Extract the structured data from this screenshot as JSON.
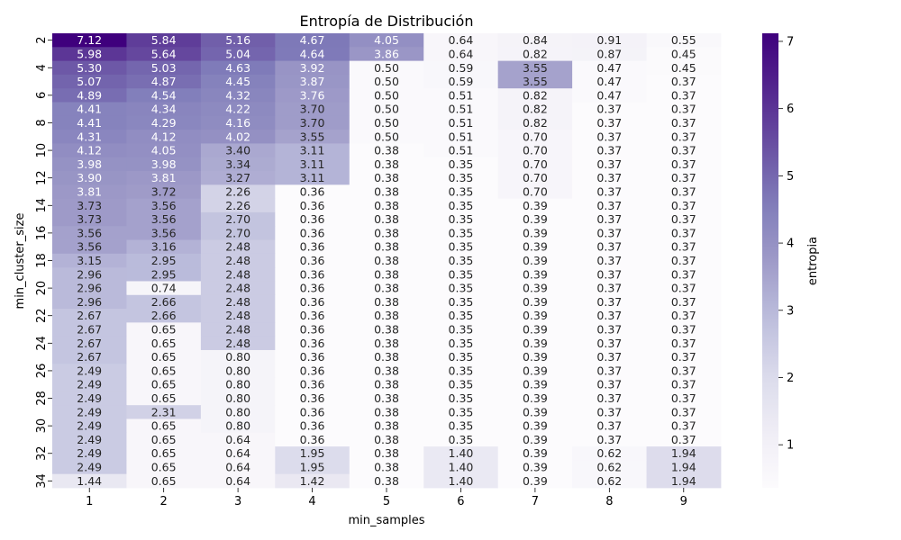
{
  "chart_data": {
    "type": "heatmap",
    "title": "Entropía de Distribución",
    "xlabel": "min_samples",
    "ylabel": "min_cluster_size",
    "colorbar_label": "entropia",
    "colormap": "Purples",
    "x": [
      1,
      2,
      3,
      4,
      5,
      6,
      7,
      8,
      9
    ],
    "y": [
      2,
      3,
      4,
      5,
      6,
      7,
      8,
      9,
      10,
      11,
      12,
      13,
      14,
      15,
      16,
      17,
      18,
      19,
      20,
      21,
      22,
      23,
      24,
      25,
      26,
      27,
      28,
      29,
      30,
      31,
      32,
      33,
      34
    ],
    "y_tick_labels": [
      "2",
      "4",
      "6",
      "8",
      "10",
      "12",
      "14",
      "16",
      "18",
      "20",
      "22",
      "24",
      "26",
      "28",
      "30",
      "32",
      "34"
    ],
    "vmin": 0.36,
    "vmax": 7.12,
    "colorbar_ticks": [
      1,
      2,
      3,
      4,
      5,
      6,
      7
    ],
    "values": [
      [
        7.12,
        5.84,
        5.16,
        4.67,
        4.05,
        0.64,
        0.84,
        0.91,
        0.55
      ],
      [
        5.98,
        5.64,
        5.04,
        4.64,
        3.86,
        0.64,
        0.82,
        0.87,
        0.45
      ],
      [
        5.3,
        5.03,
        4.63,
        3.92,
        0.5,
        0.59,
        3.55,
        0.47,
        0.45
      ],
      [
        5.07,
        4.87,
        4.45,
        3.87,
        0.5,
        0.59,
        3.55,
        0.47,
        0.37
      ],
      [
        4.89,
        4.54,
        4.32,
        3.76,
        0.5,
        0.51,
        0.82,
        0.47,
        0.37
      ],
      [
        4.41,
        4.34,
        4.22,
        3.7,
        0.5,
        0.51,
        0.82,
        0.37,
        0.37
      ],
      [
        4.41,
        4.29,
        4.16,
        3.7,
        0.5,
        0.51,
        0.82,
        0.37,
        0.37
      ],
      [
        4.31,
        4.12,
        4.02,
        3.55,
        0.5,
        0.51,
        0.7,
        0.37,
        0.37
      ],
      [
        4.12,
        4.05,
        3.4,
        3.11,
        0.38,
        0.51,
        0.7,
        0.37,
        0.37
      ],
      [
        3.98,
        3.98,
        3.34,
        3.11,
        0.38,
        0.35,
        0.7,
        0.37,
        0.37
      ],
      [
        3.9,
        3.81,
        3.27,
        3.11,
        0.38,
        0.35,
        0.7,
        0.37,
        0.37
      ],
      [
        3.81,
        3.72,
        2.26,
        0.36,
        0.38,
        0.35,
        0.7,
        0.37,
        0.37
      ],
      [
        3.73,
        3.56,
        2.26,
        0.36,
        0.38,
        0.35,
        0.39,
        0.37,
        0.37
      ],
      [
        3.73,
        3.56,
        2.7,
        0.36,
        0.38,
        0.35,
        0.39,
        0.37,
        0.37
      ],
      [
        3.56,
        3.56,
        2.7,
        0.36,
        0.38,
        0.35,
        0.39,
        0.37,
        0.37
      ],
      [
        3.56,
        3.16,
        2.48,
        0.36,
        0.38,
        0.35,
        0.39,
        0.37,
        0.37
      ],
      [
        3.15,
        2.95,
        2.48,
        0.36,
        0.38,
        0.35,
        0.39,
        0.37,
        0.37
      ],
      [
        2.96,
        2.95,
        2.48,
        0.36,
        0.38,
        0.35,
        0.39,
        0.37,
        0.37
      ],
      [
        2.96,
        0.74,
        2.48,
        0.36,
        0.38,
        0.35,
        0.39,
        0.37,
        0.37
      ],
      [
        2.96,
        2.66,
        2.48,
        0.36,
        0.38,
        0.35,
        0.39,
        0.37,
        0.37
      ],
      [
        2.67,
        2.66,
        2.48,
        0.36,
        0.38,
        0.35,
        0.39,
        0.37,
        0.37
      ],
      [
        2.67,
        0.65,
        2.48,
        0.36,
        0.38,
        0.35,
        0.39,
        0.37,
        0.37
      ],
      [
        2.67,
        0.65,
        2.48,
        0.36,
        0.38,
        0.35,
        0.39,
        0.37,
        0.37
      ],
      [
        2.67,
        0.65,
        0.8,
        0.36,
        0.38,
        0.35,
        0.39,
        0.37,
        0.37
      ],
      [
        2.49,
        0.65,
        0.8,
        0.36,
        0.38,
        0.35,
        0.39,
        0.37,
        0.37
      ],
      [
        2.49,
        0.65,
        0.8,
        0.36,
        0.38,
        0.35,
        0.39,
        0.37,
        0.37
      ],
      [
        2.49,
        0.65,
        0.8,
        0.36,
        0.38,
        0.35,
        0.39,
        0.37,
        0.37
      ],
      [
        2.49,
        2.31,
        0.8,
        0.36,
        0.38,
        0.35,
        0.39,
        0.37,
        0.37
      ],
      [
        2.49,
        0.65,
        0.8,
        0.36,
        0.38,
        0.35,
        0.39,
        0.37,
        0.37
      ],
      [
        2.49,
        0.65,
        0.64,
        0.36,
        0.38,
        0.35,
        0.39,
        0.37,
        0.37
      ],
      [
        2.49,
        0.65,
        0.64,
        1.95,
        0.38,
        1.4,
        0.39,
        0.62,
        1.94
      ],
      [
        2.49,
        0.65,
        0.64,
        1.95,
        0.38,
        1.4,
        0.39,
        0.62,
        1.94
      ],
      [
        1.44,
        0.65,
        0.64,
        1.42,
        0.38,
        1.4,
        0.39,
        0.62,
        1.94
      ]
    ],
    "grid": false,
    "legend": "colorbar-right"
  }
}
